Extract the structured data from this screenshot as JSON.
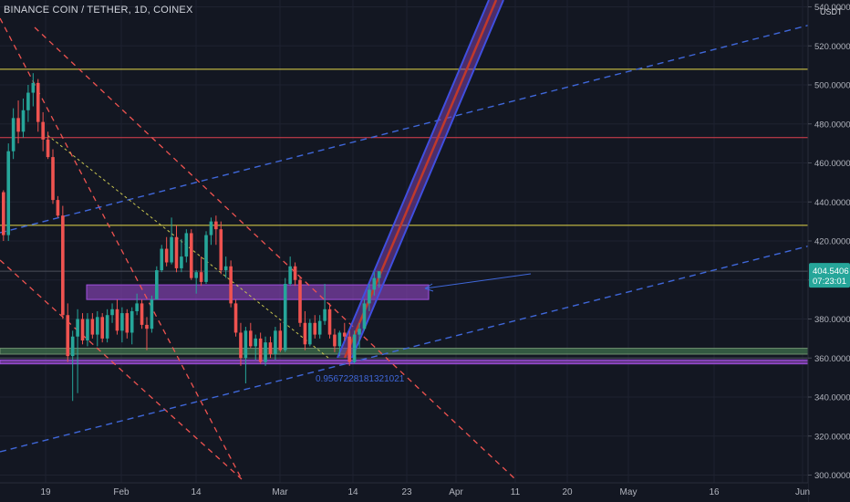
{
  "title": "BINANCE COIN / TETHER, 1D, COINEX",
  "currency": "USDT",
  "price_label": "404.5406",
  "countdown_label": "07:23:01",
  "ratio_label": "0.9567228181321021",
  "colors": {
    "background": "#131722",
    "up": "#26a69a",
    "down": "#ef5350",
    "yellow_line": "#e4d94a",
    "red_line": "#e0404f",
    "blue_dash": "#3f67d9",
    "purple_zone": "#7b3fa6",
    "green_zone": "#3c6a4a",
    "price_badge": "#26a69a"
  },
  "chart_data": {
    "type": "candlestick",
    "ylim": [
      300,
      540
    ],
    "y_ticks": [
      "300.0000",
      "320.0000",
      "340.0000",
      "360.0000",
      "380.0000",
      "400.0000",
      "420.0000",
      "440.0000",
      "460.0000",
      "480.0000",
      "500.0000",
      "520.0000",
      "540.0000"
    ],
    "x_ticks": [
      "19",
      "Feb",
      "14",
      "Mar",
      "14",
      "23",
      "Apr",
      "11",
      "20",
      "May",
      "16",
      "Jun"
    ],
    "horizontal_levels": [
      {
        "price": 508,
        "color": "yellow"
      },
      {
        "price": 473,
        "color": "red"
      },
      {
        "price": 428,
        "color": "yellow"
      },
      {
        "price": 404.5,
        "color": "grey"
      },
      {
        "price": 360,
        "color": "grey"
      }
    ],
    "zones": [
      {
        "top": 397.5,
        "bottom": 390,
        "color": "purple"
      },
      {
        "top": 365,
        "bottom": 362,
        "color": "green"
      },
      {
        "top": 359,
        "bottom": 357,
        "color": "purple"
      }
    ],
    "candles": [
      [
        445,
        446,
        420,
        423
      ],
      [
        423,
        470,
        420,
        466
      ],
      [
        466,
        488,
        462,
        483
      ],
      [
        483,
        492,
        470,
        476
      ],
      [
        476,
        493,
        473,
        487
      ],
      [
        487,
        500,
        481,
        496
      ],
      [
        496,
        506,
        489,
        501
      ],
      [
        501,
        503,
        476,
        481
      ],
      [
        481,
        486,
        466,
        472
      ],
      [
        472,
        476,
        462,
        463
      ],
      [
        463,
        467,
        439,
        441
      ],
      [
        441,
        443,
        432,
        433
      ],
      [
        433,
        438,
        380,
        382
      ],
      [
        382,
        388,
        358,
        361
      ],
      [
        361,
        374,
        338,
        371
      ],
      [
        371,
        385,
        342,
        380
      ],
      [
        380,
        383,
        367,
        369
      ],
      [
        369,
        383,
        366,
        380
      ],
      [
        380,
        383,
        370,
        372
      ],
      [
        372,
        384,
        366,
        381
      ],
      [
        381,
        383,
        368,
        370
      ],
      [
        370,
        385,
        368,
        382
      ],
      [
        382,
        388,
        378,
        385
      ],
      [
        385,
        390,
        372,
        374
      ],
      [
        374,
        386,
        368,
        383
      ],
      [
        383,
        385,
        370,
        373
      ],
      [
        373,
        386,
        367,
        384
      ],
      [
        384,
        393,
        382,
        388
      ],
      [
        388,
        390,
        375,
        377
      ],
      [
        377,
        381,
        364,
        375
      ],
      [
        375,
        392,
        373,
        390
      ],
      [
        390,
        407,
        390,
        405
      ],
      [
        405,
        418,
        404,
        416
      ],
      [
        416,
        422,
        407,
        409
      ],
      [
        409,
        432,
        408,
        422
      ],
      [
        422,
        428,
        404,
        406
      ],
      [
        406,
        421,
        404,
        412
      ],
      [
        412,
        426,
        409,
        424
      ],
      [
        424,
        426,
        400,
        401
      ],
      [
        401,
        405,
        393,
        404
      ],
      [
        404,
        412,
        397,
        399
      ],
      [
        399,
        425,
        398,
        423
      ],
      [
        423,
        432,
        418,
        430
      ],
      [
        430,
        433,
        418,
        426
      ],
      [
        426,
        430,
        403,
        405
      ],
      [
        405,
        412,
        401,
        407
      ],
      [
        407,
        410,
        386,
        388
      ],
      [
        388,
        390,
        371,
        373
      ],
      [
        373,
        378,
        356,
        360
      ],
      [
        360,
        376,
        347,
        374
      ],
      [
        374,
        378,
        365,
        366
      ],
      [
        366,
        372,
        359,
        370
      ],
      [
        370,
        373,
        357,
        358
      ],
      [
        358,
        371,
        356,
        368
      ],
      [
        368,
        371,
        360,
        362
      ],
      [
        362,
        376,
        359,
        374
      ],
      [
        374,
        378,
        363,
        364
      ],
      [
        364,
        401,
        363,
        398
      ],
      [
        398,
        412,
        397,
        407
      ],
      [
        407,
        409,
        397,
        400
      ],
      [
        400,
        402,
        376,
        378
      ],
      [
        378,
        384,
        364,
        367
      ],
      [
        367,
        380,
        366,
        378
      ],
      [
        378,
        382,
        370,
        372
      ],
      [
        372,
        382,
        370,
        379
      ],
      [
        379,
        398,
        377,
        385
      ],
      [
        385,
        388,
        370,
        372
      ],
      [
        372,
        375,
        363,
        366
      ],
      [
        366,
        374,
        361,
        373
      ],
      [
        373,
        378,
        369,
        371
      ],
      [
        371,
        374,
        356,
        358
      ],
      [
        358,
        374,
        357,
        372
      ],
      [
        372,
        378,
        365,
        375
      ],
      [
        375,
        390,
        374,
        388
      ],
      [
        388,
        398,
        384,
        395
      ],
      [
        395,
        404,
        392,
        401
      ],
      [
        401,
        404,
        396,
        404.5
      ]
    ]
  }
}
